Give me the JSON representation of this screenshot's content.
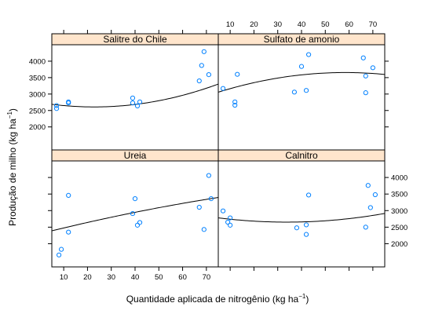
{
  "chart_data": {
    "type": "scatter",
    "layout": "lattice 2x2",
    "xlabel": "Quantidade aplicada de nitrogênio (kg ha",
    "xlabel_sup": "−1",
    "xlabel_end": ")",
    "ylabel": "Produção de milho (kg ha",
    "ylabel_sup": "−1",
    "ylabel_end": ")",
    "xlim": [
      5,
      75
    ],
    "ylim": [
      1300,
      4500
    ],
    "x_ticks": [
      10,
      20,
      30,
      40,
      50,
      60,
      70
    ],
    "y_ticks": [
      2000,
      2500,
      3000,
      3500,
      4000
    ],
    "point_color": "#0080ff",
    "strip_color": "#ffe5cc",
    "panels": [
      {
        "name": "Salitre do Chile",
        "x": [
          7,
          7,
          12,
          12,
          39,
          39,
          41,
          42,
          67,
          68,
          69,
          71
        ],
        "y": [
          2560,
          2650,
          2730,
          2760,
          2730,
          2880,
          2640,
          2760,
          3400,
          3870,
          4290,
          3590
        ],
        "fit": [
          2720,
          -0.6,
          3.0,
          0.00072
        ]
      },
      {
        "name": "Sulfato de amonio",
        "x": [
          7,
          12,
          12,
          13,
          37,
          40,
          42,
          43,
          66,
          67,
          67,
          70
        ],
        "y": [
          3170,
          2760,
          2660,
          3600,
          3060,
          3840,
          3110,
          4200,
          4100,
          3550,
          3040,
          3800
        ],
        "fit": [
          2900,
          0.0243,
          0.6,
          -0.0045
        ]
      },
      {
        "name": "Ureia",
        "x": [
          8,
          9,
          12,
          12,
          39,
          40,
          41,
          42,
          67,
          69,
          71,
          72
        ],
        "y": [
          1660,
          1830,
          2350,
          3460,
          2910,
          3360,
          2560,
          2640,
          3100,
          2430,
          4060,
          3360
        ],
        "fit": [
          2300,
          0.0243,
          -0.5,
          0.2
        ]
      },
      {
        "name": "Calnitro",
        "x": [
          7,
          9,
          10,
          10,
          38,
          42,
          42,
          43,
          67,
          68,
          69,
          71
        ],
        "y": [
          2990,
          2650,
          2560,
          2780,
          2480,
          2570,
          2280,
          3470,
          2500,
          3760,
          3090,
          3480
        ],
        "fit": [
          2820,
          -0.4,
          4.5,
          0.00095
        ]
      }
    ]
  }
}
